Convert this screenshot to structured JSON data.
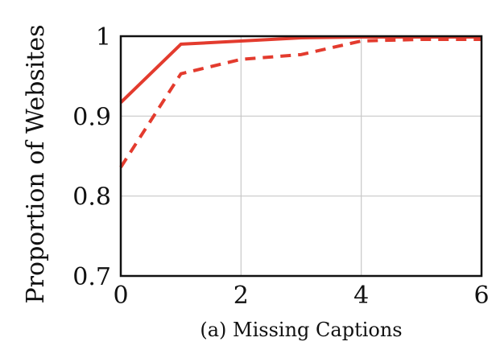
{
  "chart_data": {
    "type": "line",
    "ylabel": "Proportion of Websites",
    "xlabel": "",
    "caption": "(a) Missing Captions",
    "xlim": [
      0,
      6
    ],
    "ylim": [
      0.7,
      1.0
    ],
    "x_ticks": [
      0,
      2,
      4,
      6
    ],
    "x_tick_labels": [
      "0",
      "2",
      "4",
      "6"
    ],
    "y_ticks": [
      0.7,
      0.8,
      0.9,
      1.0
    ],
    "y_tick_labels": [
      "0.7",
      "0.8",
      "0.9",
      "1"
    ],
    "grid": true,
    "series": [
      {
        "style": "solid",
        "color": "#e33b2e",
        "points": [
          [
            0,
            0.917
          ],
          [
            1,
            0.99
          ],
          [
            2,
            0.994
          ],
          [
            3,
            0.998
          ],
          [
            4,
            0.999
          ],
          [
            5,
            0.999
          ],
          [
            6,
            0.999
          ]
        ]
      },
      {
        "style": "dashed",
        "color": "#e33b2e",
        "points": [
          [
            0,
            0.836
          ],
          [
            1,
            0.953
          ],
          [
            2,
            0.971
          ],
          [
            3,
            0.977
          ],
          [
            4,
            0.994
          ],
          [
            5,
            0.996
          ],
          [
            6,
            0.996
          ]
        ]
      }
    ]
  }
}
